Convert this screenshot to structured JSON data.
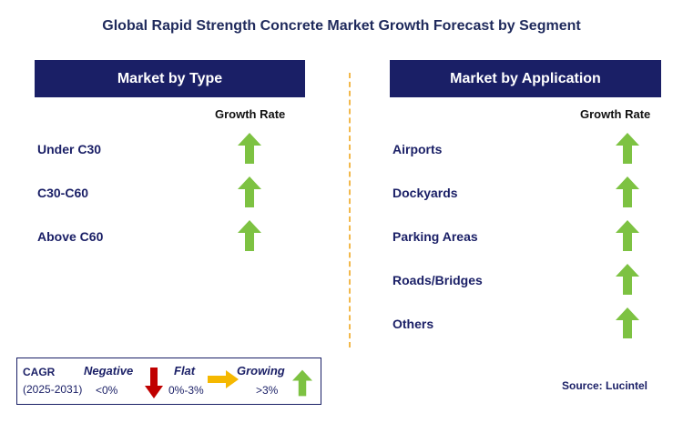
{
  "title": "Global Rapid Strength Concrete Market Growth Forecast by Segment",
  "left_panel": {
    "header": "Market by Type",
    "growth_label": "Growth Rate",
    "items": [
      {
        "label": "Under C30",
        "trend": "growing"
      },
      {
        "label": "C30-C60",
        "trend": "growing"
      },
      {
        "label": "Above C60",
        "trend": "growing"
      }
    ]
  },
  "right_panel": {
    "header": "Market by Application",
    "growth_label": "Growth Rate",
    "items": [
      {
        "label": "Airports",
        "trend": "growing"
      },
      {
        "label": "Dockyards",
        "trend": "growing"
      },
      {
        "label": "Parking Areas",
        "trend": "growing"
      },
      {
        "label": "Roads/Bridges",
        "trend": "growing"
      },
      {
        "label": "Others",
        "trend": "growing"
      }
    ]
  },
  "legend": {
    "cagr_label": "CAGR",
    "period": "(2025-2031)",
    "negative_label": "Negative",
    "negative_range": "<0%",
    "flat_label": "Flat",
    "flat_range": "0%-3%",
    "growing_label": "Growing",
    "growing_range": ">3%"
  },
  "source": "Source: Lucintel",
  "colors": {
    "header_bg": "#1a1f66",
    "growing": "#7dc242",
    "negative": "#c00000",
    "flat": "#f5b800",
    "divider": "#f2b84b"
  },
  "icons": {
    "growing": "green-up-arrow-icon",
    "negative": "red-down-arrow-icon",
    "flat": "orange-right-arrow-icon"
  }
}
